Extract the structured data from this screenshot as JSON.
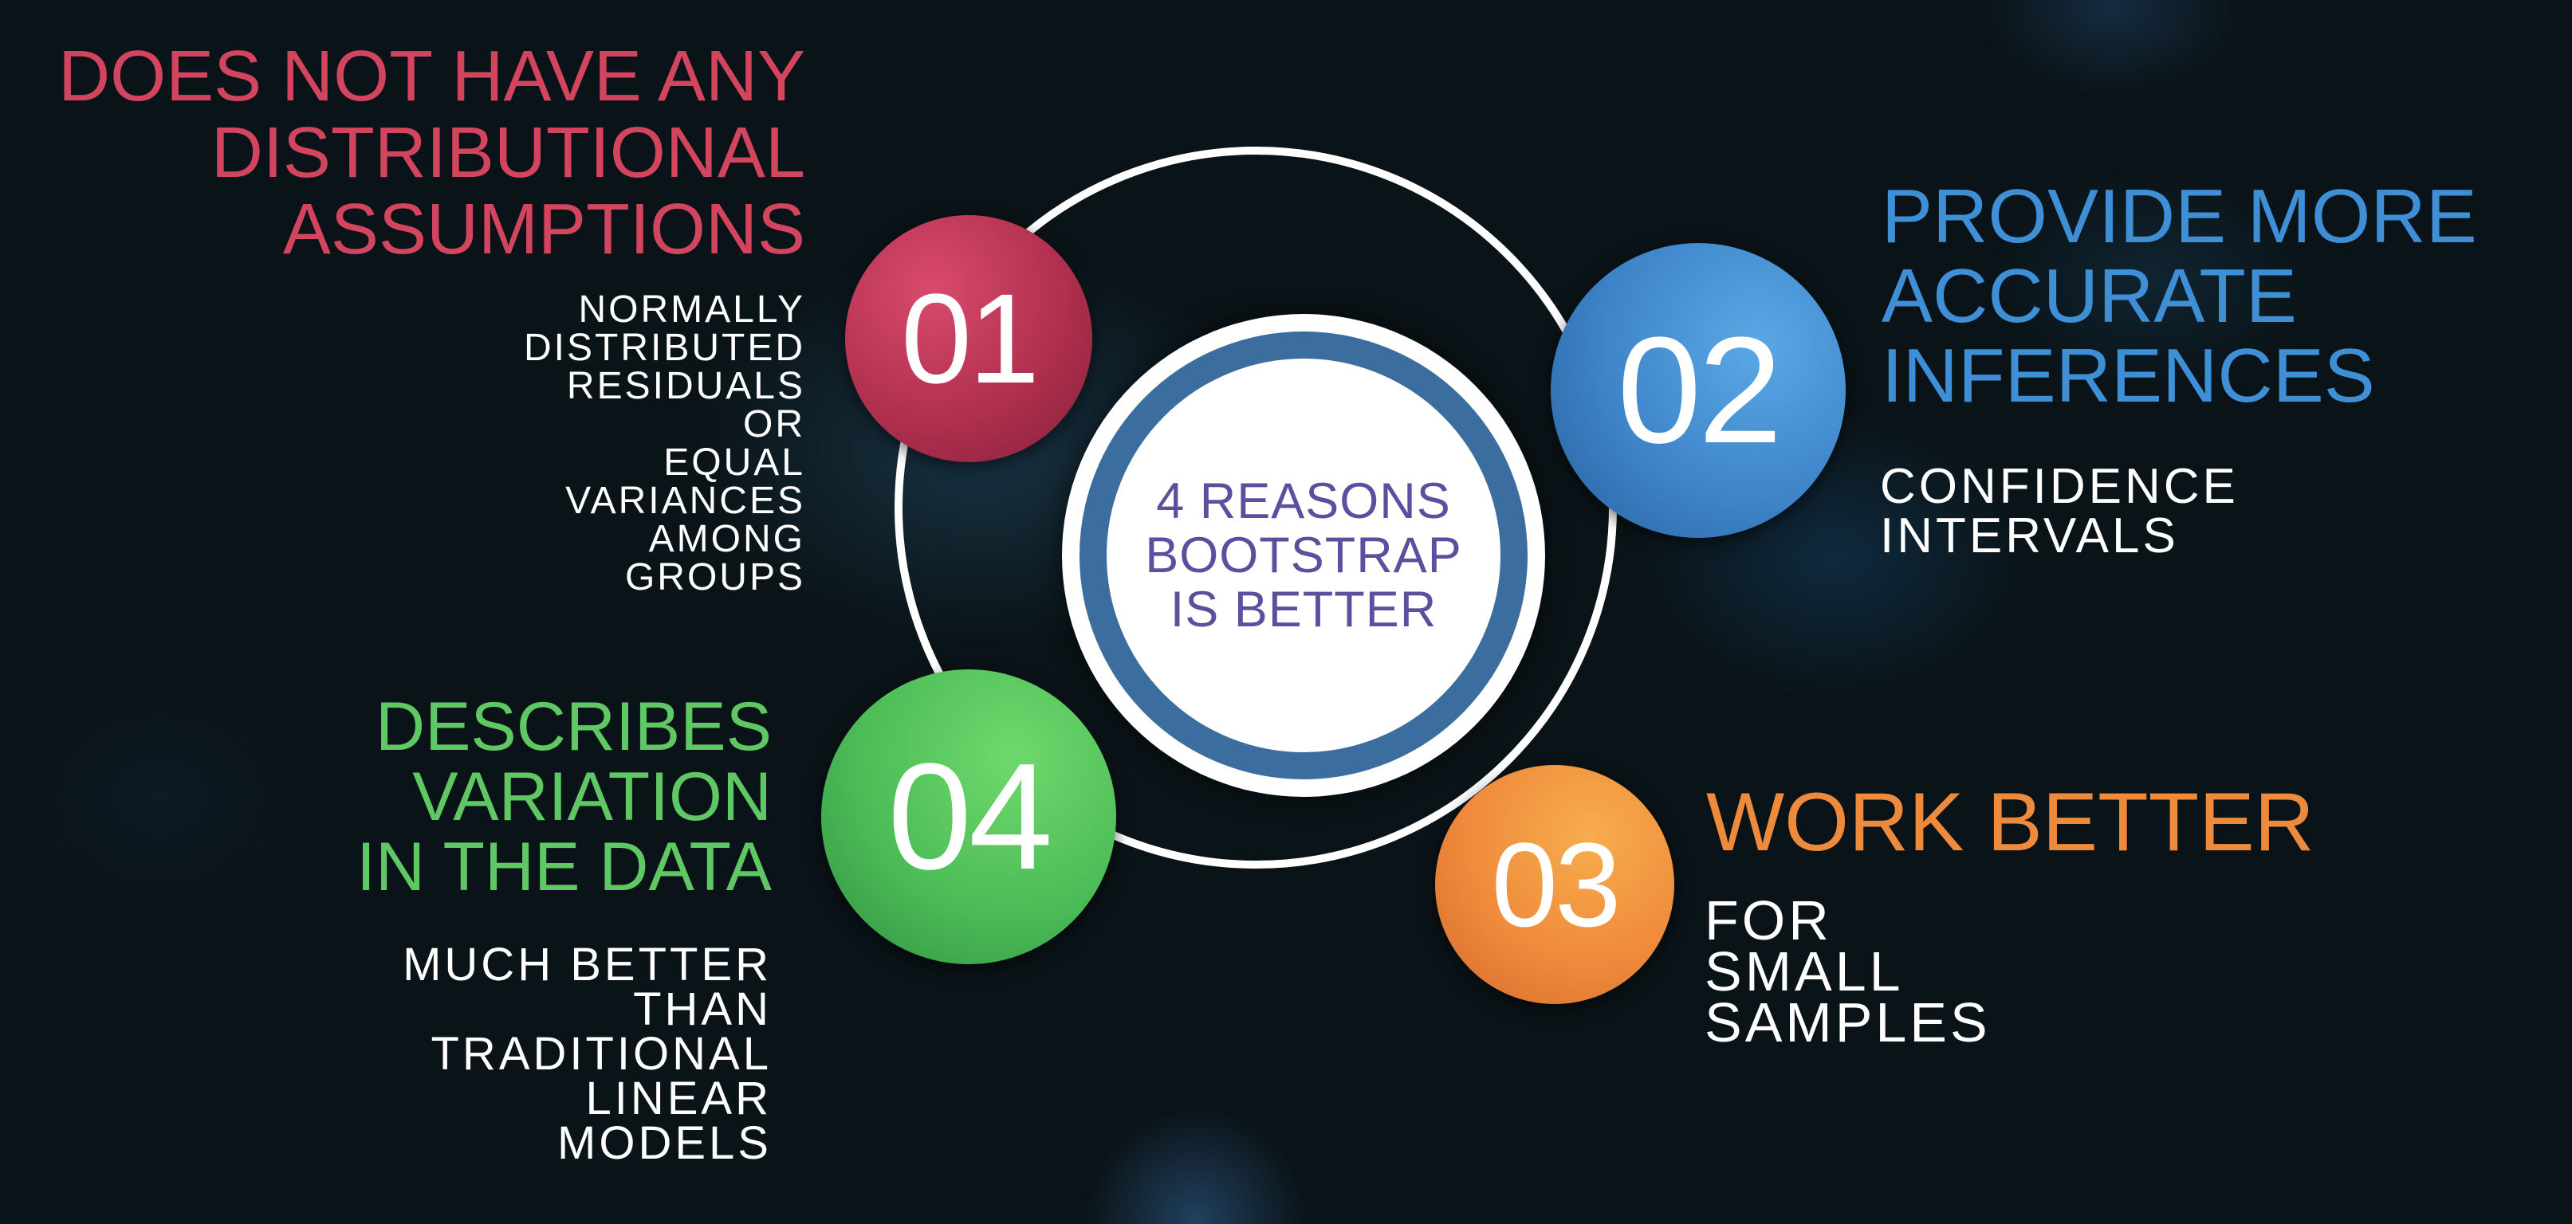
{
  "center": {
    "lines": [
      "4 REASONS",
      "BOOTSTRAP",
      "IS BETTER"
    ]
  },
  "reasons": [
    {
      "number": "01",
      "heading": [
        "DOES NOT HAVE ANY",
        "DISTRIBUTIONAL",
        "ASSUMPTIONS"
      ],
      "detail": [
        "NORMALLY",
        "DISTRIBUTED",
        "RESIDUALS",
        "OR",
        "EQUAL",
        "VARIANCES",
        "AMONG",
        "GROUPS"
      ],
      "color": "#c2395a"
    },
    {
      "number": "02",
      "heading": [
        "PROVIDE MORE",
        "ACCURATE",
        "INFERENCES"
      ],
      "detail": [
        "CONFIDENCE",
        "INTERVALS"
      ],
      "color": "#3f8fd6"
    },
    {
      "number": "03",
      "heading": [
        "WORK BETTER"
      ],
      "detail": [
        "FOR",
        "SMALL",
        "SAMPLES"
      ],
      "color": "#ee8a3c"
    },
    {
      "number": "04",
      "heading": [
        "DESCRIBES",
        "VARIATION",
        "IN THE DATA"
      ],
      "detail": [
        "MUCH BETTER",
        "THAN",
        "TRADITIONAL",
        "LINEAR",
        "MODELS"
      ],
      "color": "#5fc864"
    }
  ],
  "colors": {
    "background": "#0a1317",
    "ring": "#ffffff",
    "hub_ring": "#3b6e9e",
    "hub_text": "#5f4e9e"
  }
}
